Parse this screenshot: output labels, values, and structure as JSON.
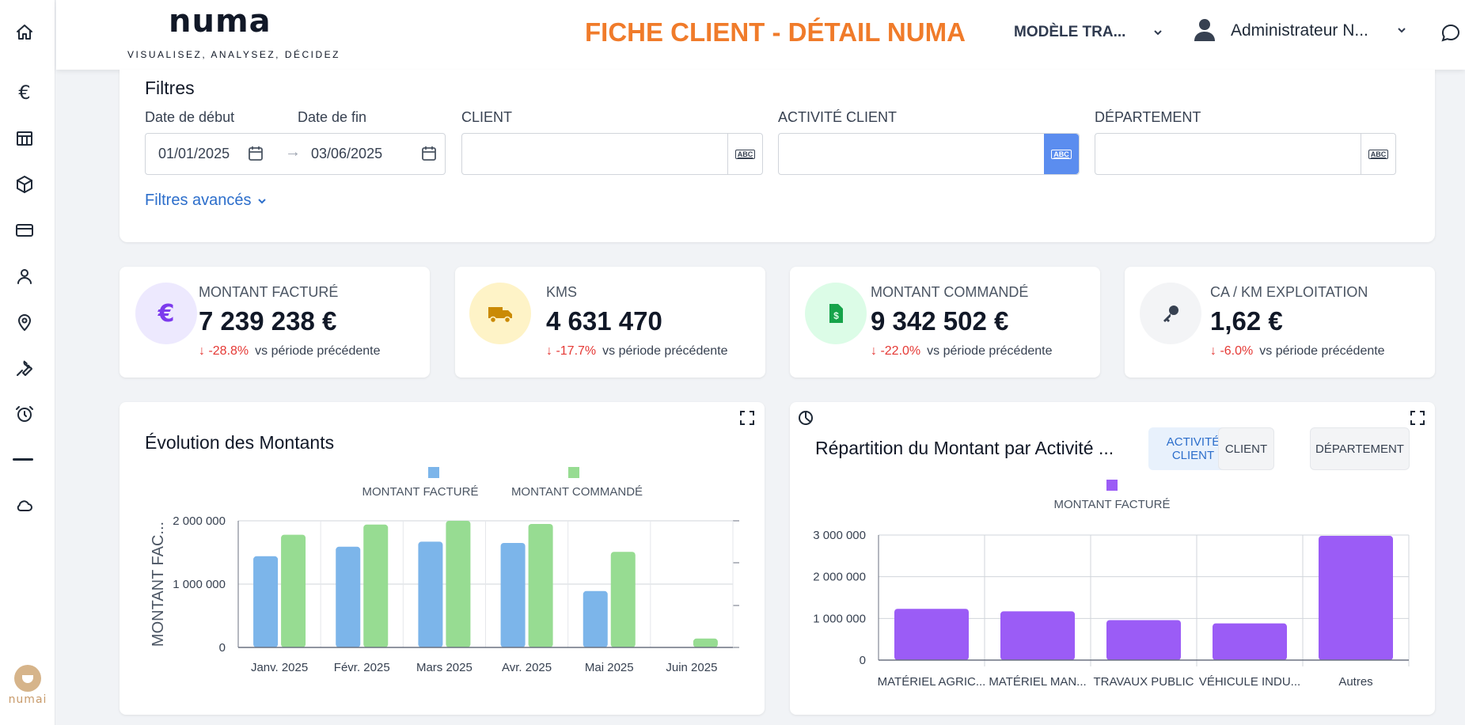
{
  "header": {
    "logo": "numa",
    "tagline": "VISUALISEZ, ANALYSEZ, DÉCIDEZ",
    "title": "FICHE CLIENT - DÉTAIL NUMA",
    "model_select": "MODÈLE TRA...",
    "user_name": "Administrateur N..."
  },
  "sidebar": {
    "items": [
      "home-icon",
      "euro-icon",
      "table-icon",
      "cube-icon",
      "credit-card-icon",
      "user-icon",
      "map-pin-icon",
      "wrench-icon",
      "alarm-clock-icon",
      "minus-icon",
      "cloud-icon"
    ],
    "assistant_label": "numai"
  },
  "filters": {
    "title": "Filtres",
    "start_label": "Date de début",
    "end_label": "Date de fin",
    "start_value": "01/01/2025",
    "end_value": "03/06/2025",
    "client_label": "CLIENT",
    "activity_label": "ACTIVITÉ CLIENT",
    "department_label": "DÉPARTEMENT",
    "advanced_label": "Filtres avancés"
  },
  "kpis": [
    {
      "label": "MONTANT FACTURÉ",
      "value": "7 239 238 €",
      "delta": "-28.8%",
      "compare": "vs période précédente",
      "icon": "euro-icon",
      "icon_bg": "#ede9fe",
      "icon_color": "#7c3aed"
    },
    {
      "label": "KMS",
      "value": "4 631 470",
      "delta": "-17.7%",
      "compare": "vs période précédente",
      "icon": "truck-icon",
      "icon_bg": "#fef3c7",
      "icon_color": "#ca8a04"
    },
    {
      "label": "MONTANT COMMANDÉ",
      "value": "9 342 502 €",
      "delta": "-22.0%",
      "compare": "vs période précédente",
      "icon": "invoice-icon",
      "icon_bg": "#dcfce7",
      "icon_color": "#16a34a"
    },
    {
      "label": "CA / KM EXPLOITATION",
      "value": "1,62 €",
      "delta": "-6.0%",
      "compare": "vs période précédente",
      "icon": "key-icon",
      "icon_bg": "#f3f4f6",
      "icon_color": "#374151"
    }
  ],
  "left_chart": {
    "title": "Évolution des Montants"
  },
  "right_chart": {
    "title": "Répartition du Montant par Activité ...",
    "tabs": [
      "ACTIVITÉ CLIENT",
      "CLIENT",
      "DÉPARTEMENT"
    ],
    "active_tab": 0
  },
  "chart_data": [
    {
      "type": "bar",
      "title": "Évolution des Montants",
      "categories": [
        "Janv. 2025",
        "Févr. 2025",
        "Mars 2025",
        "Avr. 2025",
        "Mai 2025",
        "Juin 2025"
      ],
      "series": [
        {
          "name": "MONTANT FACTURÉ",
          "color": "#7cb5ea",
          "values": [
            1440000,
            1590000,
            1670000,
            1650000,
            890000,
            0
          ]
        },
        {
          "name": "MONTANT COMMANDÉ",
          "color": "#97dc92",
          "values": [
            1780000,
            1940000,
            2000000,
            1950000,
            1510000,
            140000
          ]
        }
      ],
      "ylabel": "MONTANT FAC...",
      "yticks": [
        "0",
        "1 000 000",
        "2 000 000"
      ],
      "ylim": [
        0,
        2000000
      ],
      "legend": "top",
      "grid": true
    },
    {
      "type": "bar",
      "title": "Répartition du Montant par Activité ...",
      "categories": [
        "MATÉRIEL AGRIC...",
        "MATÉRIEL MAN...",
        "TRAVAUX PUBLIC",
        "VÉHICULE INDU...",
        "Autres"
      ],
      "series": [
        {
          "name": "MONTANT FACTURÉ",
          "color": "#9b5cf6",
          "values": [
            1230000,
            1170000,
            960000,
            880000,
            2980000
          ]
        }
      ],
      "yticks": [
        "0",
        "1 000 000",
        "2 000 000",
        "3 000 000"
      ],
      "ylim": [
        0,
        3000000
      ],
      "legend": "top",
      "grid": true
    }
  ]
}
